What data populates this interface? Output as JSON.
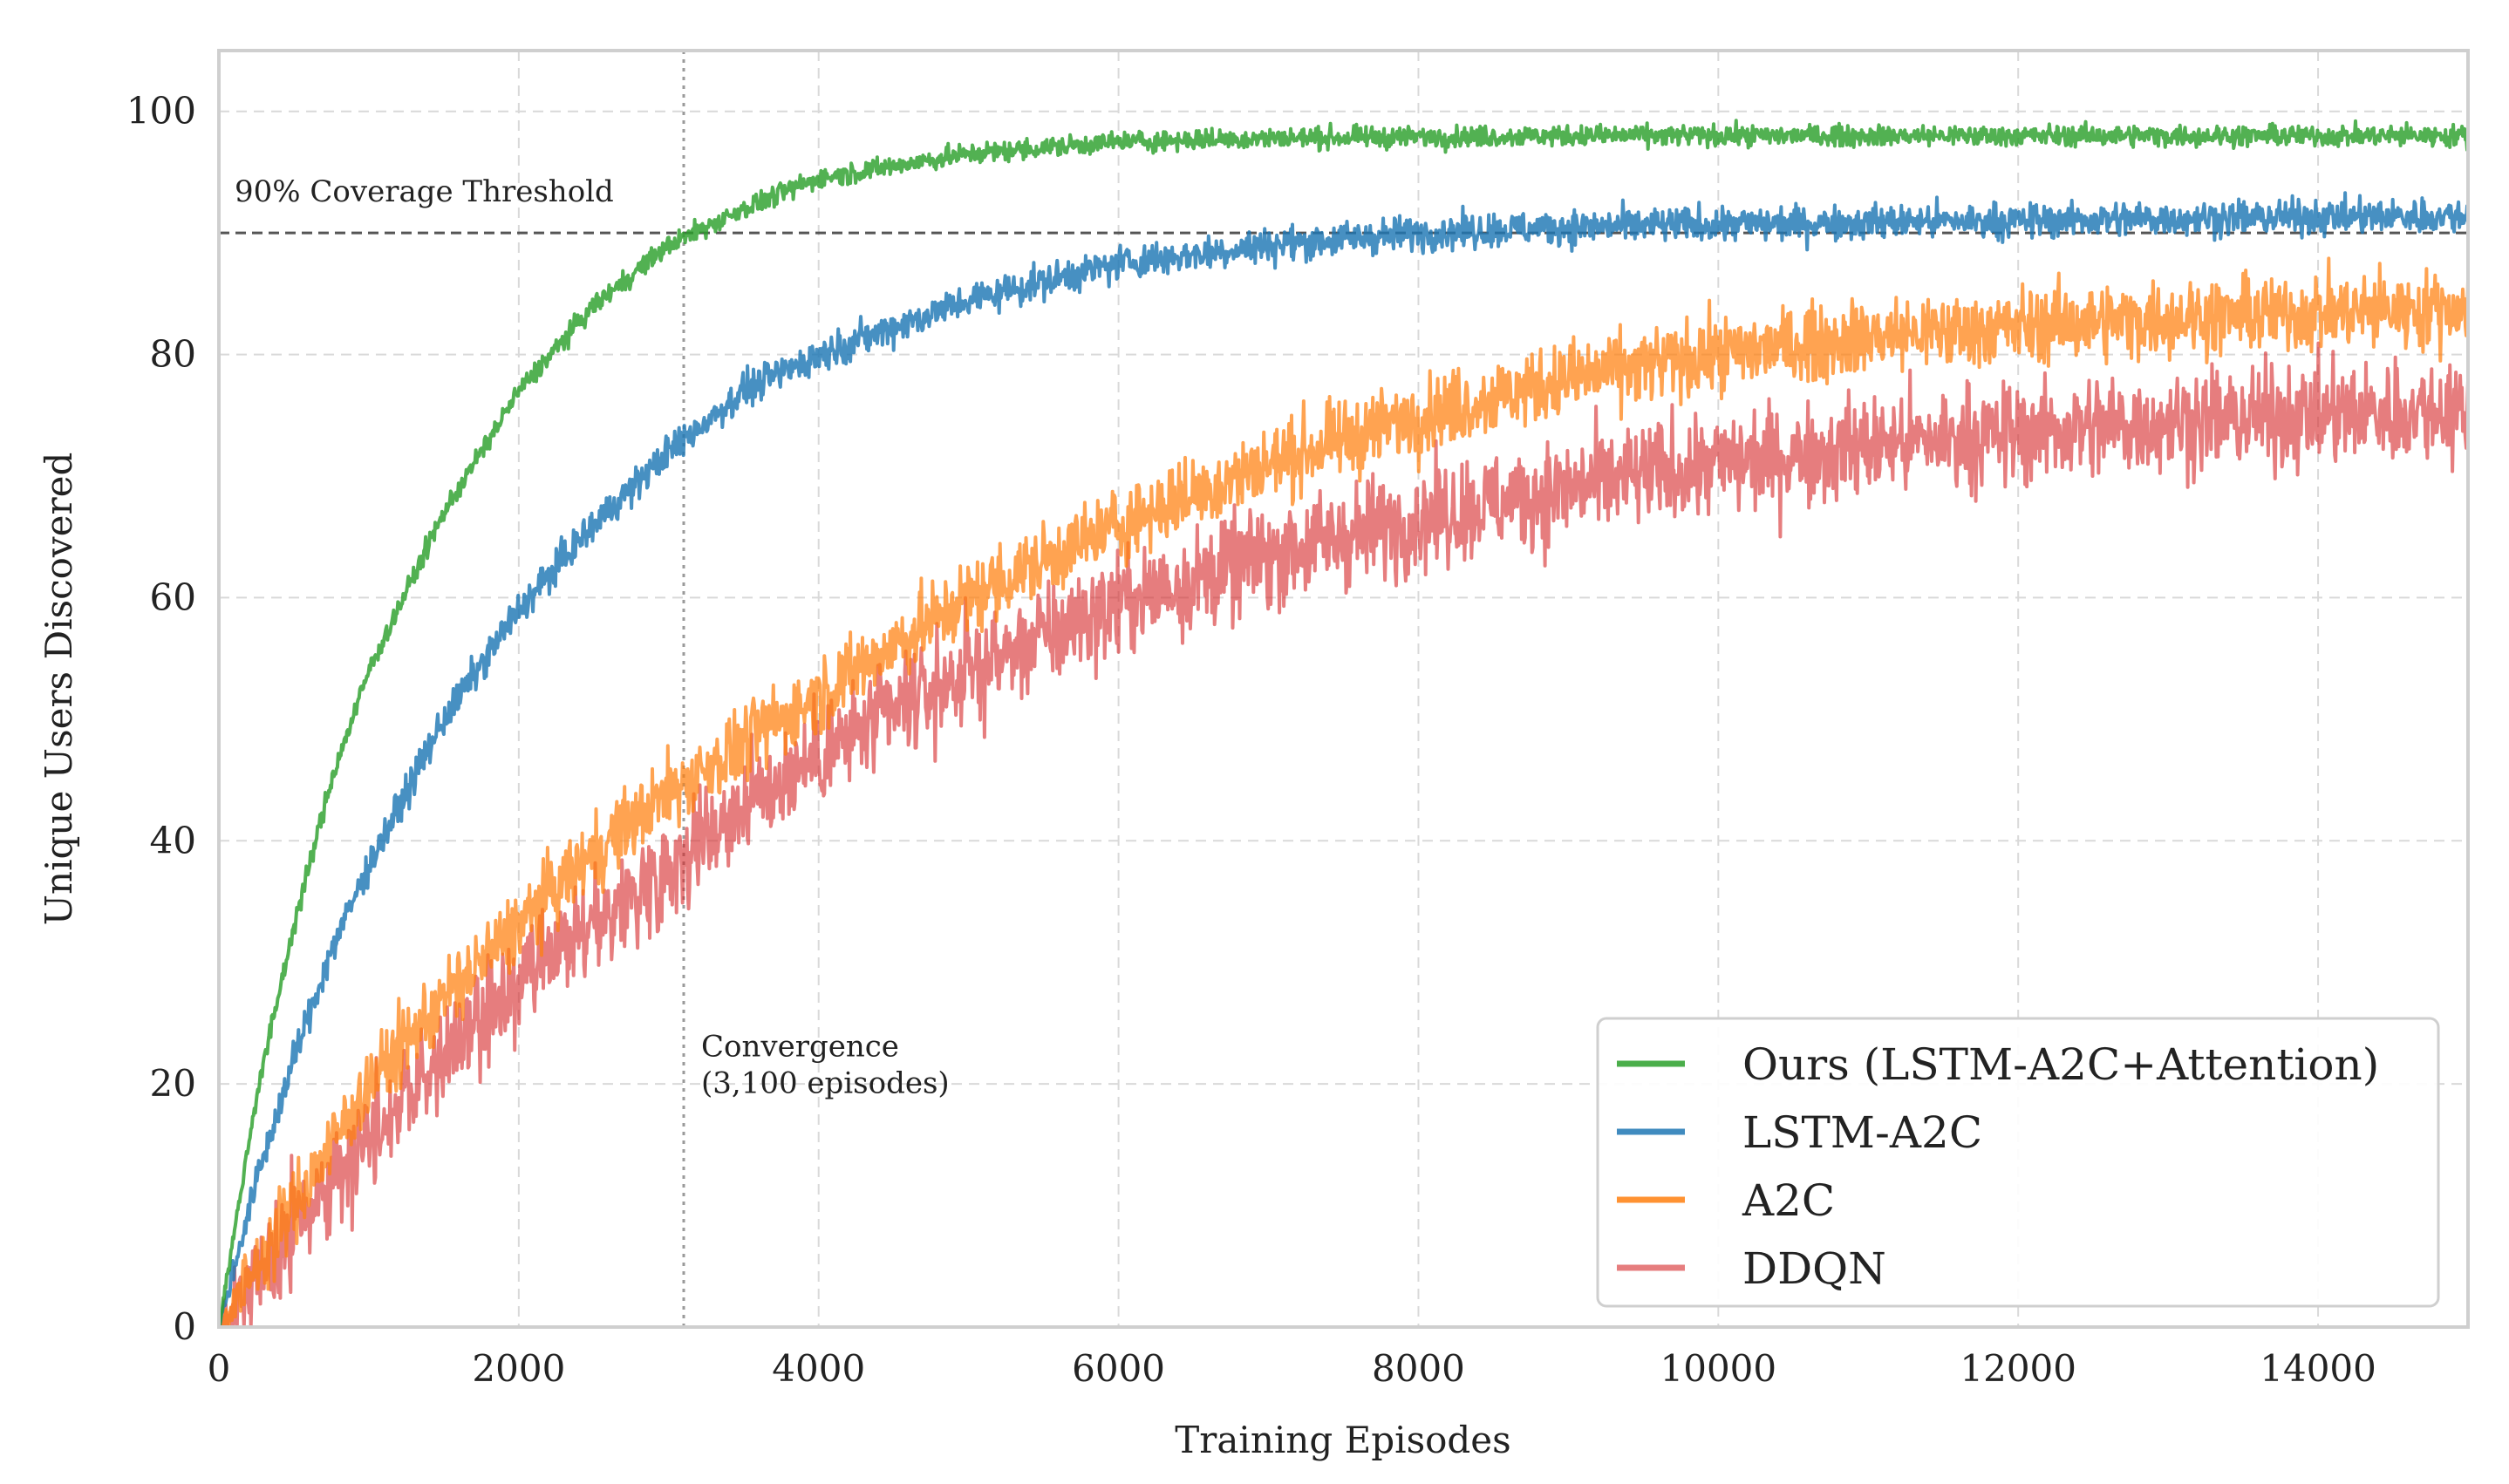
{
  "chart_data": {
    "type": "line",
    "title": "",
    "xlabel": "Training Episodes",
    "ylabel": "Unique Users Discovered",
    "xlim": [
      0,
      15000
    ],
    "ylim": [
      0,
      105
    ],
    "xticks": [
      0,
      2000,
      4000,
      6000,
      8000,
      10000,
      12000,
      14000
    ],
    "xtick_labels": [
      "0",
      "2000",
      "4000",
      "6000",
      "8000",
      "10000",
      "12000",
      "14000"
    ],
    "yticks": [
      0,
      20,
      40,
      60,
      80,
      100
    ],
    "ytick_labels": [
      "0",
      "20",
      "40",
      "60",
      "80",
      "100"
    ],
    "grid": true,
    "legend_position": "bottom-right",
    "x": [
      0,
      250,
      500,
      750,
      1000,
      1500,
      2000,
      2500,
      3000,
      3500,
      4000,
      5000,
      6000,
      7000,
      8000,
      9000,
      10000,
      11000,
      12000,
      13000,
      14000,
      15000
    ],
    "series": [
      {
        "name": "Ours (LSTM-A2C+Attention)",
        "color": "#2ca02c",
        "noise": 0.6,
        "values": [
          0,
          19,
          33,
          45,
          54,
          67,
          77,
          84,
          89,
          92,
          94.5,
          96.5,
          97.5,
          97.8,
          97.9,
          98,
          98,
          98,
          98,
          98,
          98,
          98
        ]
      },
      {
        "name": "LSTM-A2C",
        "color": "#1f77b4",
        "noise": 1.0,
        "values": [
          0,
          12,
          22,
          31,
          38,
          50,
          59,
          66,
          72,
          77,
          80,
          84.5,
          87.5,
          89,
          90,
          90.5,
          90.7,
          90.9,
          91,
          91.2,
          91.3,
          91.4
        ]
      },
      {
        "name": "A2C",
        "color": "#ff7f0e",
        "noise": 2.2,
        "values": [
          0,
          5,
          10,
          15,
          20,
          27,
          33,
          39,
          44,
          48,
          52,
          60,
          66,
          71,
          75,
          78,
          80,
          81.5,
          82.3,
          83,
          83.5,
          83.8
        ]
      },
      {
        "name": "DDQN",
        "color": "#d62728",
        "noise": 3.0,
        "values": [
          0,
          4,
          8,
          12,
          16,
          22,
          28,
          33,
          38,
          43,
          47,
          54,
          59.5,
          63.5,
          66.5,
          69,
          71,
          72.5,
          73.5,
          74.5,
          75,
          75.5
        ]
      }
    ],
    "annotations": [
      {
        "text": "90% Coverage Threshold",
        "kind": "hline",
        "y": 90
      },
      {
        "text": "Convergence",
        "subtext": "(3,100 episodes)",
        "kind": "vline",
        "x": 3100
      }
    ]
  }
}
